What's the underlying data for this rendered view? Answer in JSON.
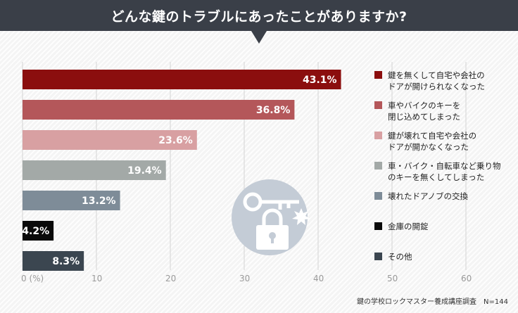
{
  "header": {
    "title": "どんな鍵のトラブルにあったことがありますか?"
  },
  "source": "鍵の学校ロックマスター養成講座調査　N=144",
  "chart_data": {
    "type": "bar",
    "orientation": "horizontal",
    "title": "どんな鍵のトラブルにあったことがありますか?",
    "xlim": [
      0,
      70
    ],
    "ticks": [
      {
        "value": 0,
        "label": "0 (%)"
      },
      {
        "value": 10,
        "label": "10"
      },
      {
        "value": 20,
        "label": "20"
      },
      {
        "value": 30,
        "label": "30"
      },
      {
        "value": 40,
        "label": "40"
      },
      {
        "value": 50,
        "label": "50"
      },
      {
        "value": 60,
        "label": "60"
      }
    ],
    "grid": true,
    "legend_position": "right",
    "bars": [
      {
        "value": 43.1,
        "label": "43.1%",
        "color": "#8b0e0e",
        "legend": [
          "鍵を無くして自宅や会社の",
          "ドアが開けられなくなった"
        ]
      },
      {
        "value": 36.8,
        "label": "36.8%",
        "color": "#b4575a",
        "legend": [
          "車やバイクのキーを",
          "閉じ込めてしまった"
        ]
      },
      {
        "value": 23.6,
        "label": "23.6%",
        "color": "#d8a0a2",
        "legend": [
          "鍵が壊れて自宅や会社の",
          "ドアが開かなくなった"
        ]
      },
      {
        "value": 19.4,
        "label": "19.4%",
        "color": "#a3a9a7",
        "legend": [
          "車・バイク・自転車など乗り物",
          "のキーを無くしてしまった"
        ]
      },
      {
        "value": 13.2,
        "label": "13.2%",
        "color": "#7e8c98",
        "legend": [
          "壊れたドアノブの交換"
        ]
      },
      {
        "value": 4.2,
        "label": "4.2%",
        "color": "#0a0a0a",
        "legend": [
          "金庫の開錠"
        ]
      },
      {
        "value": 8.3,
        "label": "8.3%",
        "color": "#3b4650",
        "legend": [
          "その他"
        ]
      }
    ]
  }
}
